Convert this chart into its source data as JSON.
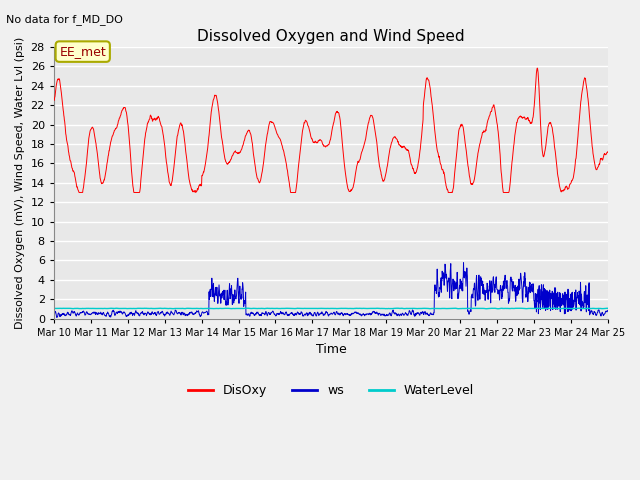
{
  "title": "Dissolved Oxygen and Wind Speed",
  "suptitle": "No data for f_MD_DO",
  "xlabel": "Time",
  "ylabel": "Dissolved Oxygen (mV), Wind Speed, Water Lvl (psi)",
  "annotation": "EE_met",
  "ylim": [
    0,
    28
  ],
  "yticks": [
    0,
    2,
    4,
    6,
    8,
    10,
    12,
    14,
    16,
    18,
    20,
    22,
    24,
    26,
    28
  ],
  "xtick_labels": [
    "Mar 10",
    "Mar 11",
    "Mar 12",
    "Mar 13",
    "Mar 14",
    "Mar 15",
    "Mar 16",
    "Mar 17",
    "Mar 18",
    "Mar 19",
    "Mar 20",
    "Mar 21",
    "Mar 22",
    "Mar 23",
    "Mar 24",
    "Mar 25"
  ],
  "disoxy_color": "#ff0000",
  "ws_color": "#0000cc",
  "wl_color": "#00cccc",
  "bg_color": "#f0f0f0",
  "plot_bg": "#e8e8e8",
  "grid_color": "#ffffff",
  "legend_entries": [
    "DisOxy",
    "ws",
    "WaterLevel"
  ],
  "n_points": 2000
}
